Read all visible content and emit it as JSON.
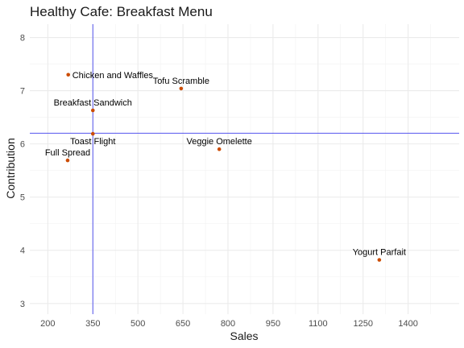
{
  "chart_data": {
    "type": "scatter",
    "title": "Healthy Cafe: Breakfast Menu",
    "xlabel": "Sales",
    "ylabel": "Contribution",
    "xlim": [
      140,
      1570
    ],
    "ylim": [
      2.8,
      8.25
    ],
    "x_ticks": [
      200,
      350,
      500,
      650,
      800,
      950,
      1100,
      1250,
      1400
    ],
    "y_ticks": [
      3,
      4,
      5,
      6,
      7,
      8
    ],
    "grid": true,
    "point_color": "#cc4c02",
    "reference_line_color": "#5555ee",
    "reference_lines": {
      "x": 350,
      "y": 6.2
    },
    "points": [
      {
        "label": "Chicken and Waffles",
        "x": 268,
        "y": 7.3,
        "label_pos": "right"
      },
      {
        "label": "Tofu Scramble",
        "x": 644,
        "y": 7.04,
        "label_pos": "above"
      },
      {
        "label": "Breakfast Sandwich",
        "x": 350,
        "y": 6.63,
        "label_pos": "above"
      },
      {
        "label": "Toast Flight",
        "x": 350,
        "y": 6.19,
        "label_pos": "below"
      },
      {
        "label": "Veggie Omelette",
        "x": 771,
        "y": 5.9,
        "label_pos": "above"
      },
      {
        "label": "Full Spread",
        "x": 266,
        "y": 5.69,
        "label_pos": "above"
      },
      {
        "label": "Yogurt Parfait",
        "x": 1304,
        "y": 3.82,
        "label_pos": "above"
      }
    ]
  }
}
